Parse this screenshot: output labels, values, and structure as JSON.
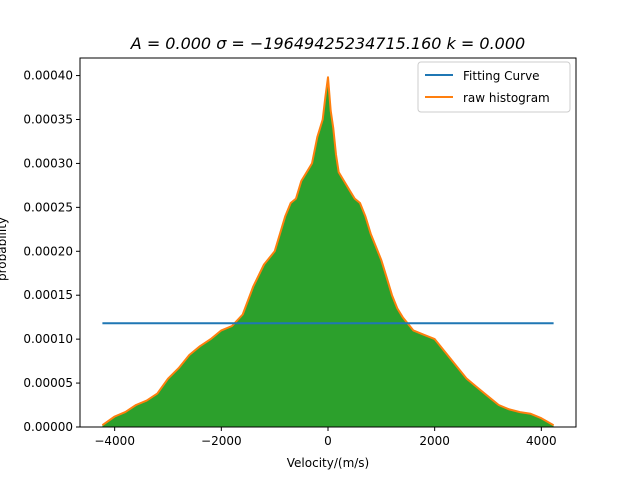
{
  "chart_data": {
    "type": "area",
    "title": "A = 0.000 σ = −19649425234715.160 k = 0.000",
    "xlabel": "Velocity/(m/s)",
    "ylabel": "probability",
    "xlim": [
      -4650,
      4650
    ],
    "ylim": [
      0,
      0.00042
    ],
    "xticks": [
      -4000,
      -2000,
      0,
      2000,
      4000
    ],
    "xtick_labels": [
      "−4000",
      "−2000",
      "0",
      "2000",
      "4000"
    ],
    "yticks": [
      0,
      5e-05,
      0.0001,
      0.00015,
      0.0002,
      0.00025,
      0.0003,
      0.00035,
      0.0004
    ],
    "ytick_labels": [
      "0.00000",
      "0.00005",
      "0.00010",
      "0.00015",
      "0.00020",
      "0.00025",
      "0.00030",
      "0.00035",
      "0.00040"
    ],
    "grid": false,
    "legend_position": "top-right",
    "series": [
      {
        "name": "Fitting Curve",
        "kind": "line",
        "color": "#1f77b4",
        "x": [
          -4230,
          4230
        ],
        "y": [
          0.000118,
          0.000118
        ]
      },
      {
        "name": "raw histogram",
        "kind": "line",
        "color": "#ff7f0e",
        "fill_color": "#2ca02c",
        "x": [
          -4230,
          -4000,
          -3800,
          -3600,
          -3400,
          -3200,
          -3000,
          -2800,
          -2600,
          -2400,
          -2200,
          -2000,
          -1800,
          -1600,
          -1400,
          -1200,
          -1000,
          -900,
          -800,
          -700,
          -600,
          -500,
          -400,
          -300,
          -200,
          -150,
          -100,
          -50,
          0,
          50,
          100,
          150,
          200,
          300,
          400,
          500,
          600,
          700,
          800,
          900,
          1000,
          1100,
          1200,
          1300,
          1400,
          1600,
          1800,
          2000,
          2200,
          2400,
          2600,
          2800,
          3000,
          3200,
          3400,
          3600,
          3800,
          4000,
          4230
        ],
        "y": [
          2e-06,
          1.2e-05,
          1.7e-05,
          2.5e-05,
          3e-05,
          3.8e-05,
          5.5e-05,
          6.7e-05,
          8.2e-05,
          9.2e-05,
          0.0001,
          0.00011,
          0.000115,
          0.000128,
          0.00016,
          0.000185,
          0.0002,
          0.00022,
          0.00024,
          0.000255,
          0.00026,
          0.00028,
          0.00029,
          0.0003,
          0.00033,
          0.00034,
          0.00035,
          0.000375,
          0.000398,
          0.00036,
          0.00034,
          0.00031,
          0.00029,
          0.00028,
          0.00027,
          0.00026,
          0.000255,
          0.00024,
          0.00022,
          0.000205,
          0.00019,
          0.00017,
          0.00015,
          0.000135,
          0.000125,
          0.00011,
          0.000105,
          0.0001,
          8.5e-05,
          7e-05,
          5.5e-05,
          4.5e-05,
          3.5e-05,
          2.5e-05,
          2e-05,
          1.7e-05,
          1.5e-05,
          1e-05,
          2e-06
        ]
      }
    ]
  }
}
